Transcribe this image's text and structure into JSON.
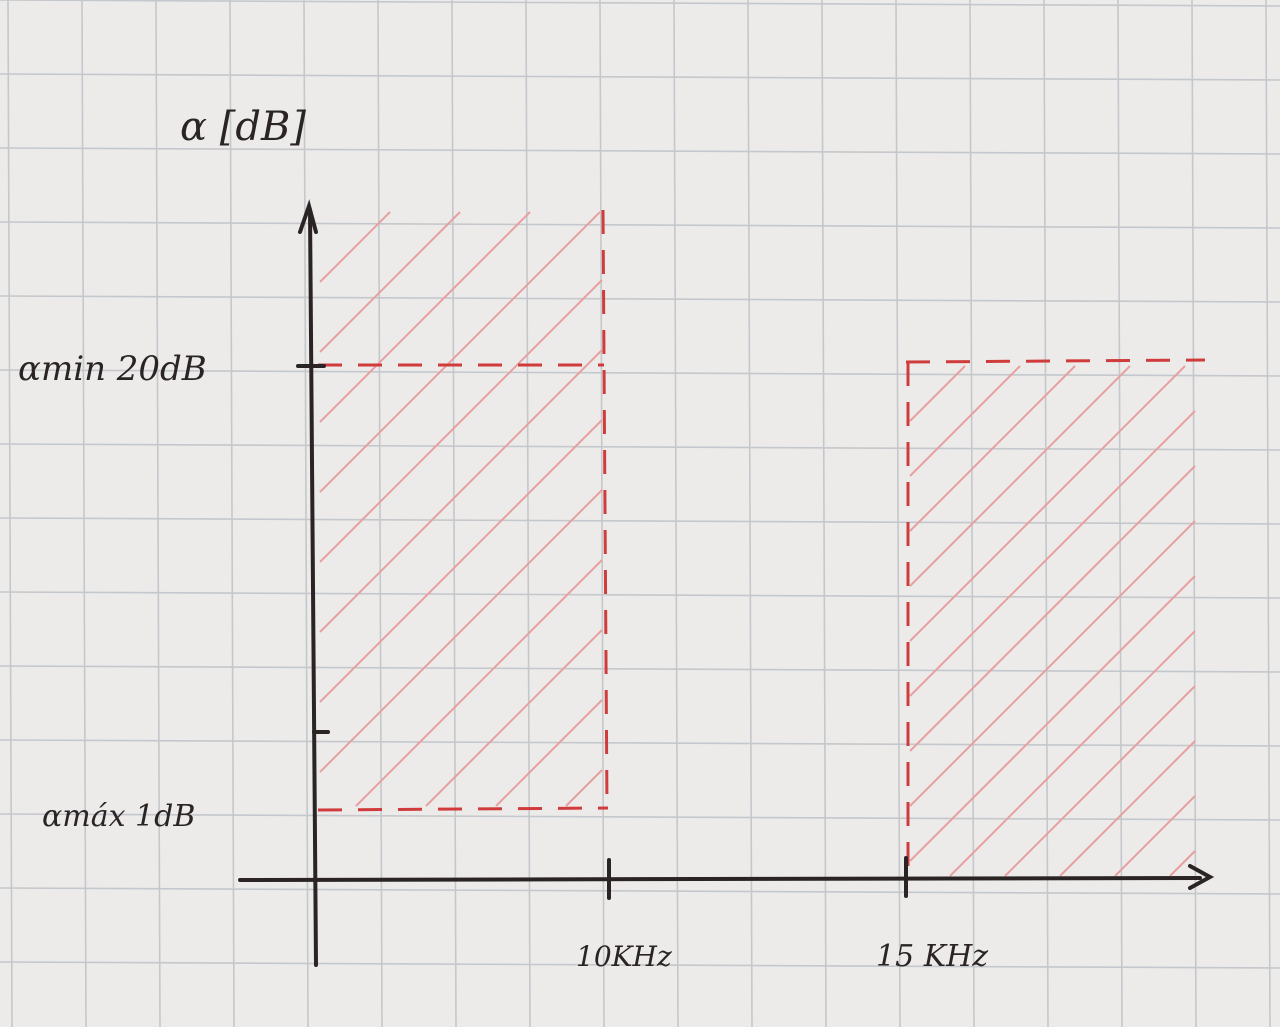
{
  "diagram": {
    "y_axis_label": "α [dB]",
    "alpha_min_label": "αmin 20dB",
    "alpha_max_label": "αmáx 1dB",
    "passband_edge_label": "10KHz",
    "stopband_edge_label": "15 KHz"
  },
  "colors": {
    "paper": "#ecebea",
    "grid": "#c4c7cb",
    "ink": "#2a2424",
    "red": "#d03c3c",
    "hatch": "#e6a0a0"
  }
}
